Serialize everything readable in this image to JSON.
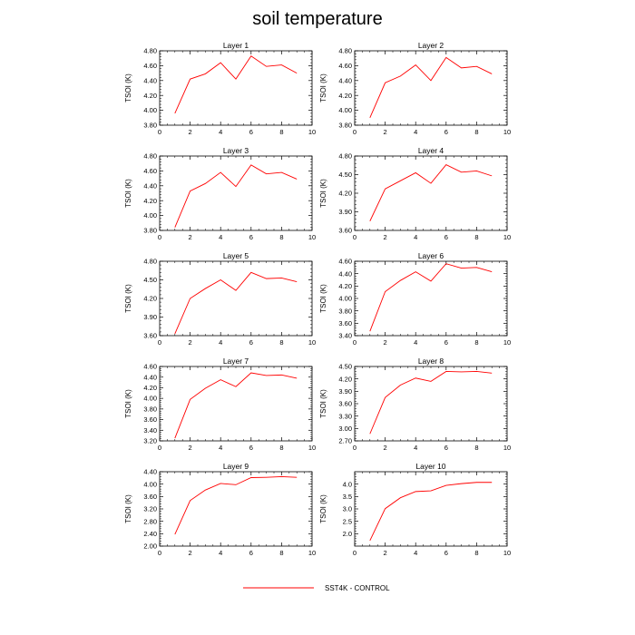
{
  "title": "soil temperature",
  "legend": {
    "label": "SST4K - CONTROL",
    "color": "#ff0000"
  },
  "chart_data": [
    {
      "type": "line",
      "title": "Layer 1",
      "ylabel": "TSOI  (K)",
      "xlim": [
        0,
        10
      ],
      "ylim": [
        3.8,
        4.8
      ],
      "xticks": [
        "0",
        "2",
        "4",
        "6",
        "8",
        "10"
      ],
      "yticks": [
        "3.80",
        "4.00",
        "4.20",
        "4.40",
        "4.60",
        "4.80"
      ],
      "series": [
        {
          "x": [
            1,
            2,
            3,
            4,
            5,
            6,
            7,
            8,
            9
          ],
          "values": [
            3.96,
            4.42,
            4.49,
            4.64,
            4.42,
            4.73,
            4.59,
            4.61,
            4.5
          ]
        }
      ]
    },
    {
      "type": "line",
      "title": "Layer 2",
      "ylabel": "TSOI  (K)",
      "xlim": [
        0,
        10
      ],
      "ylim": [
        3.8,
        4.8
      ],
      "xticks": [
        "0",
        "2",
        "4",
        "6",
        "8",
        "10"
      ],
      "yticks": [
        "3.80",
        "4.00",
        "4.20",
        "4.40",
        "4.60",
        "4.80"
      ],
      "series": [
        {
          "x": [
            1,
            2,
            3,
            4,
            5,
            6,
            7,
            8,
            9
          ],
          "values": [
            3.9,
            4.37,
            4.46,
            4.61,
            4.4,
            4.71,
            4.57,
            4.59,
            4.49
          ]
        }
      ]
    },
    {
      "type": "line",
      "title": "Layer 3",
      "ylabel": "TSOI  (K)",
      "xlim": [
        0,
        10
      ],
      "ylim": [
        3.8,
        4.8
      ],
      "xticks": [
        "0",
        "2",
        "4",
        "6",
        "8",
        "10"
      ],
      "yticks": [
        "3.80",
        "4.00",
        "4.20",
        "4.40",
        "4.60",
        "4.80"
      ],
      "series": [
        {
          "x": [
            1,
            2,
            3,
            4,
            5,
            6,
            7,
            8,
            9
          ],
          "values": [
            3.84,
            4.33,
            4.43,
            4.58,
            4.39,
            4.68,
            4.56,
            4.58,
            4.49
          ]
        }
      ]
    },
    {
      "type": "line",
      "title": "Layer 4",
      "ylabel": "TSOI  (K)",
      "xlim": [
        0,
        10
      ],
      "ylim": [
        3.6,
        4.8
      ],
      "xticks": [
        "0",
        "2",
        "4",
        "6",
        "8",
        "10"
      ],
      "yticks": [
        "3.60",
        "3.90",
        "4.20",
        "4.50",
        "4.80"
      ],
      "series": [
        {
          "x": [
            1,
            2,
            3,
            4,
            5,
            6,
            7,
            8,
            9
          ],
          "values": [
            3.75,
            4.27,
            4.4,
            4.53,
            4.36,
            4.66,
            4.54,
            4.56,
            4.48
          ]
        }
      ]
    },
    {
      "type": "line",
      "title": "Layer 5",
      "ylabel": "TSOI  (K)",
      "xlim": [
        0,
        10
      ],
      "ylim": [
        3.6,
        4.8
      ],
      "xticks": [
        "0",
        "2",
        "4",
        "6",
        "8",
        "10"
      ],
      "yticks": [
        "3.60",
        "3.90",
        "4.20",
        "4.50",
        "4.80"
      ],
      "series": [
        {
          "x": [
            1,
            2,
            3,
            4,
            5,
            6,
            7,
            8,
            9
          ],
          "values": [
            3.63,
            4.2,
            4.36,
            4.5,
            4.33,
            4.62,
            4.52,
            4.53,
            4.47
          ]
        }
      ]
    },
    {
      "type": "line",
      "title": "Layer 6",
      "ylabel": "TSOI  (K)",
      "xlim": [
        0,
        10
      ],
      "ylim": [
        3.4,
        4.6
      ],
      "xticks": [
        "0",
        "2",
        "4",
        "6",
        "8",
        "10"
      ],
      "yticks": [
        "3.40",
        "3.60",
        "3.80",
        "4.00",
        "4.20",
        "4.40",
        "4.60"
      ],
      "series": [
        {
          "x": [
            1,
            2,
            3,
            4,
            5,
            6,
            7,
            8,
            9
          ],
          "values": [
            3.47,
            4.11,
            4.29,
            4.43,
            4.28,
            4.56,
            4.49,
            4.5,
            4.43
          ]
        }
      ]
    },
    {
      "type": "line",
      "title": "Layer 7",
      "ylabel": "TSOI  (K)",
      "xlim": [
        0,
        10
      ],
      "ylim": [
        3.2,
        4.6
      ],
      "xticks": [
        "0",
        "2",
        "4",
        "6",
        "8",
        "10"
      ],
      "yticks": [
        "3.20",
        "3.40",
        "3.60",
        "3.80",
        "4.00",
        "4.20",
        "4.40",
        "4.60"
      ],
      "series": [
        {
          "x": [
            1,
            2,
            3,
            4,
            5,
            6,
            7,
            8,
            9
          ],
          "values": [
            3.25,
            3.98,
            4.19,
            4.35,
            4.22,
            4.48,
            4.43,
            4.44,
            4.38
          ]
        }
      ]
    },
    {
      "type": "line",
      "title": "Layer 8",
      "ylabel": "TSOI  (K)",
      "xlim": [
        0,
        10
      ],
      "ylim": [
        2.7,
        4.5
      ],
      "xticks": [
        "0",
        "2",
        "4",
        "6",
        "8",
        "10"
      ],
      "yticks": [
        "2.70",
        "3.00",
        "3.30",
        "3.60",
        "3.90",
        "4.20",
        "4.50"
      ],
      "series": [
        {
          "x": [
            1,
            2,
            3,
            4,
            5,
            6,
            7,
            8,
            9
          ],
          "values": [
            2.87,
            3.75,
            4.05,
            4.22,
            4.14,
            4.38,
            4.37,
            4.38,
            4.34
          ]
        }
      ]
    },
    {
      "type": "line",
      "title": "Layer 9",
      "ylabel": "TSOI  (K)",
      "xlim": [
        0,
        10
      ],
      "ylim": [
        2.0,
        4.4
      ],
      "xticks": [
        "0",
        "2",
        "4",
        "6",
        "8",
        "10"
      ],
      "yticks": [
        "2.00",
        "2.40",
        "2.80",
        "3.20",
        "3.60",
        "4.00",
        "4.40"
      ],
      "series": [
        {
          "x": [
            1,
            2,
            3,
            4,
            5,
            6,
            7,
            8,
            9
          ],
          "values": [
            2.38,
            3.47,
            3.81,
            4.02,
            3.98,
            4.21,
            4.22,
            4.24,
            4.22
          ]
        }
      ]
    },
    {
      "type": "line",
      "title": "Layer 10",
      "ylabel": "TSOI  (K)",
      "xlim": [
        0,
        10
      ],
      "ylim": [
        1.5,
        4.5
      ],
      "xticks": [
        "0",
        "2",
        "4",
        "6",
        "8",
        "10"
      ],
      "yticks": [
        "2.0",
        "2.5",
        "3.0",
        "3.5",
        "4.0"
      ],
      "series": [
        {
          "x": [
            1,
            2,
            3,
            4,
            5,
            6,
            7,
            8,
            9
          ],
          "values": [
            1.72,
            3.01,
            3.45,
            3.7,
            3.73,
            3.95,
            4.02,
            4.07,
            4.07
          ]
        }
      ]
    }
  ]
}
